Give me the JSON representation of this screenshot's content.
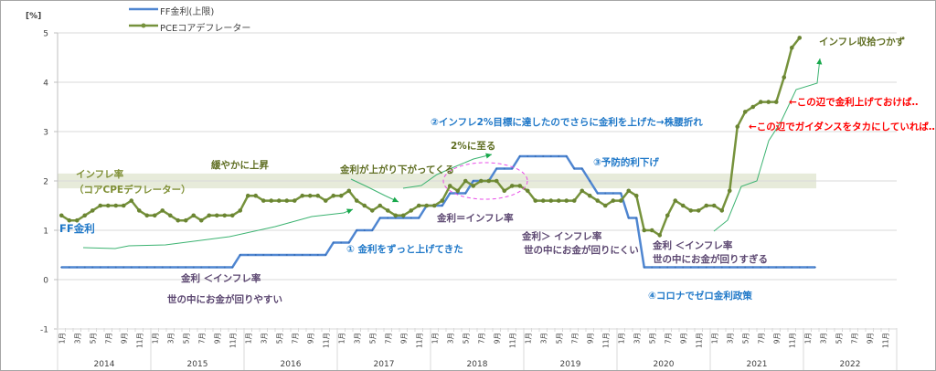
{
  "chart_data": {
    "type": "line",
    "unit_label": "[%]",
    "ylim": [
      -1,
      5
    ],
    "yticks": [
      "-1",
      "0",
      "1",
      "2",
      "3",
      "4",
      "5"
    ],
    "years": [
      "2014",
      "2015",
      "2016",
      "2017",
      "2018",
      "2019",
      "2020",
      "2021",
      "2022"
    ],
    "month_labels": [
      "1月",
      "3月",
      "5月",
      "7月",
      "9月",
      "11月"
    ],
    "grid": true,
    "legend_position": "top-left",
    "target_band": [
      1.85,
      2.15
    ],
    "series": [
      {
        "name": "FF金利(上限)",
        "color": "#4f86d1",
        "values": [
          0.25,
          0.25,
          0.25,
          0.25,
          0.25,
          0.25,
          0.25,
          0.25,
          0.25,
          0.25,
          0.25,
          0.25,
          0.25,
          0.25,
          0.25,
          0.25,
          0.25,
          0.25,
          0.25,
          0.25,
          0.25,
          0.25,
          0.25,
          0.5,
          0.5,
          0.5,
          0.5,
          0.5,
          0.5,
          0.5,
          0.5,
          0.5,
          0.5,
          0.5,
          0.5,
          0.75,
          0.75,
          0.75,
          1.0,
          1.0,
          1.0,
          1.25,
          1.25,
          1.25,
          1.25,
          1.25,
          1.25,
          1.5,
          1.5,
          1.5,
          1.75,
          1.75,
          1.75,
          2.0,
          2.0,
          2.0,
          2.25,
          2.25,
          2.25,
          2.5,
          2.5,
          2.5,
          2.5,
          2.5,
          2.5,
          2.5,
          2.25,
          2.25,
          2.0,
          1.75,
          1.75,
          1.75,
          1.75,
          1.25,
          1.25,
          0.25,
          0.25,
          0.25,
          0.25,
          0.25,
          0.25,
          0.25,
          0.25,
          0.25,
          0.25,
          0.25,
          0.25,
          0.25,
          0.25,
          0.25,
          0.25,
          0.25,
          0.25,
          0.25,
          0.25,
          0.25,
          0.25,
          0.25
        ]
      },
      {
        "name": "PCEコアデフレーター",
        "color": "#76923c",
        "values": [
          1.3,
          1.2,
          1.2,
          1.3,
          1.4,
          1.5,
          1.5,
          1.5,
          1.5,
          1.6,
          1.4,
          1.3,
          1.3,
          1.4,
          1.3,
          1.2,
          1.2,
          1.3,
          1.2,
          1.3,
          1.3,
          1.3,
          1.3,
          1.4,
          1.7,
          1.7,
          1.6,
          1.6,
          1.6,
          1.6,
          1.6,
          1.7,
          1.7,
          1.7,
          1.6,
          1.7,
          1.7,
          1.8,
          1.6,
          1.5,
          1.4,
          1.5,
          1.4,
          1.3,
          1.3,
          1.4,
          1.5,
          1.5,
          1.5,
          1.6,
          1.9,
          1.8,
          2.0,
          1.9,
          2.0,
          2.0,
          2.0,
          1.8,
          1.9,
          1.9,
          1.8,
          1.6,
          1.6,
          1.6,
          1.6,
          1.6,
          1.6,
          1.8,
          1.7,
          1.6,
          1.5,
          1.6,
          1.6,
          1.8,
          1.7,
          1.0,
          1.0,
          0.9,
          1.3,
          1.6,
          1.5,
          1.4,
          1.4,
          1.5,
          1.5,
          1.4,
          1.8,
          3.1,
          3.4,
          3.5,
          3.6,
          3.6,
          3.6,
          4.1,
          4.7,
          4.9
        ]
      }
    ],
    "annotations": {
      "inflation_label": "インフレ率",
      "inflation_sub": "（コアCPEデフレーター）",
      "ff_label": "FF金利",
      "gradual_rise": "緩やかに上昇",
      "rates_rising": "金利が上がり下がってくる",
      "reached_2pct": "2%に至る",
      "note2": "②インフレ2%目標に達したのでさらに金利を上げた→株腰折れ",
      "note3": "③予防的利下げ",
      "rate_eq": "金利＝インフレ率",
      "note1": "① 金利をずっと上げてきた",
      "rate_gt": "金利＞ インフレ率",
      "rate_gt_sub": "世の中にお金が回りにくい",
      "rate_lt_2020": "金利 ＜インフレ率",
      "rate_lt_2020_sub": "世の中にお金が回りすぎる",
      "rate_lt_2015": "金利 ＜インフレ率",
      "rate_lt_2015_sub": "世の中にお金が回りやすい",
      "note4": "④コロナでゼロ金利政策",
      "inflation_uncontrolled": "インフレ収拾つかず",
      "red1": "←この辺で金利上げておけば‥",
      "red2": "←この辺でガイダンスをタカにしていれば‥"
    }
  }
}
